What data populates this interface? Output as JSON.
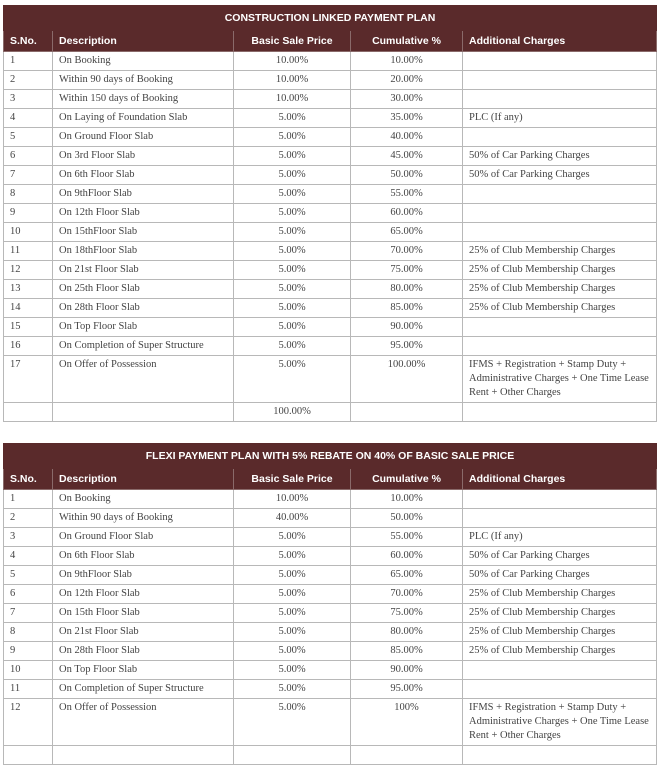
{
  "headers": [
    "S.No.",
    "Description",
    "Basic Sale Price",
    "Cumulative %",
    "Additional Charges"
  ],
  "plan1": {
    "title": "CONSTRUCTION LINKED PAYMENT PLAN",
    "rows": [
      [
        "1",
        "On Booking",
        "10.00%",
        "10.00%",
        ""
      ],
      [
        "2",
        "Within 90 days of Booking",
        "10.00%",
        "20.00%",
        ""
      ],
      [
        "3",
        "Within 150 days of Booking",
        "10.00%",
        "30.00%",
        ""
      ],
      [
        "4",
        "On Laying of Foundation Slab",
        "5.00%",
        "35.00%",
        "PLC (If any)"
      ],
      [
        "5",
        "On Ground Floor Slab",
        "5.00%",
        "40.00%",
        ""
      ],
      [
        "6",
        "On 3rd Floor Slab",
        "5.00%",
        "45.00%",
        "50% of Car Parking Charges"
      ],
      [
        "7",
        "On 6th Floor Slab",
        "5.00%",
        "50.00%",
        "50% of Car Parking Charges"
      ],
      [
        "8",
        "On 9thFloor Slab",
        "5.00%",
        "55.00%",
        ""
      ],
      [
        "9",
        "On 12th Floor Slab",
        "5.00%",
        "60.00%",
        ""
      ],
      [
        "10",
        "On 15thFloor Slab",
        "5.00%",
        "65.00%",
        ""
      ],
      [
        "11",
        "On 18thFloor Slab",
        "5.00%",
        "70.00%",
        "25% of Club Membership Charges"
      ],
      [
        "12",
        "On 21st Floor Slab",
        "5.00%",
        "75.00%",
        "25% of Club Membership Charges"
      ],
      [
        "13",
        "On 25th Floor Slab",
        "5.00%",
        "80.00%",
        "25% of Club Membership Charges"
      ],
      [
        "14",
        "On 28th Floor Slab",
        "5.00%",
        "85.00%",
        "25% of Club Membership Charges"
      ],
      [
        "15",
        "On Top Floor Slab",
        "5.00%",
        "90.00%",
        ""
      ],
      [
        "16",
        "On Completion of Super Structure",
        "5.00%",
        "95.00%",
        ""
      ],
      [
        "17",
        "On Offer of Possession",
        "5.00%",
        "100.00%",
        "IFMS + Registration + Stamp Duty + Administrative Charges + One Time Lease Rent + Other Charges"
      ],
      [
        "",
        "",
        "100.00%",
        "",
        ""
      ]
    ]
  },
  "plan2": {
    "title": "FLEXI PAYMENT PLAN WITH 5% REBATE ON 40% OF BASIC SALE PRICE",
    "rows": [
      [
        "1",
        "On Booking",
        "10.00%",
        "10.00%",
        ""
      ],
      [
        "2",
        "Within 90 days of Booking",
        "40.00%",
        "50.00%",
        ""
      ],
      [
        "3",
        "On Ground Floor Slab",
        "5.00%",
        "55.00%",
        "PLC (If any)"
      ],
      [
        "4",
        "On 6th Floor Slab",
        "5.00%",
        "60.00%",
        "50% of Car Parking Charges"
      ],
      [
        "5",
        "On 9thFloor Slab",
        "5.00%",
        "65.00%",
        "50% of Car Parking Charges"
      ],
      [
        "6",
        "On 12th Floor Slab",
        "5.00%",
        "70.00%",
        "25% of Club Membership Charges"
      ],
      [
        "7",
        "On 15th Floor Slab",
        "5.00%",
        "75.00%",
        "25% of Club Membership Charges"
      ],
      [
        "8",
        "On 21st Floor Slab",
        "5.00%",
        "80.00%",
        "25% of Club Membership Charges"
      ],
      [
        "9",
        "On 28th Floor Slab",
        "5.00%",
        "85.00%",
        "25% of Club Membership Charges"
      ],
      [
        "10",
        "On Top Floor Slab",
        "5.00%",
        "90.00%",
        ""
      ],
      [
        "11",
        "On Completion of Super Structure",
        "5.00%",
        "95.00%",
        ""
      ],
      [
        "12",
        "On Offer of Possession",
        "5.00%",
        "100%",
        "IFMS + Registration + Stamp Duty + Administrative Charges + One Time Lease Rent + Other Charges"
      ],
      [
        "",
        "",
        "",
        "",
        ""
      ]
    ]
  }
}
